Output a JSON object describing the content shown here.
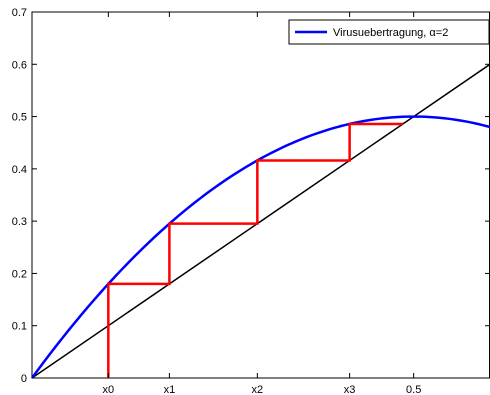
{
  "chart_data": {
    "type": "line",
    "title": "",
    "xlabel": "",
    "ylabel": "",
    "xlim": [
      0,
      0.6
    ],
    "ylim": [
      0,
      0.7
    ],
    "grid": false,
    "legend_position": "top-right",
    "y_ticks": [
      0,
      0.1,
      0.2,
      0.3,
      0.4,
      0.5,
      0.6,
      0.7
    ],
    "y_tick_labels": [
      "0",
      "0.1",
      "0.2",
      "0.3",
      "0.4",
      "0.5",
      "0.6",
      "0.7"
    ],
    "x_ticks": [
      {
        "value": 0.1,
        "label": "x0"
      },
      {
        "value": 0.18,
        "label": "x1"
      },
      {
        "value": 0.2952,
        "label": "x2"
      },
      {
        "value": 0.4161,
        "label": "x3"
      },
      {
        "value": 0.5,
        "label": "0.5"
      }
    ],
    "series": [
      {
        "name": "Virusuebertragung, α=2",
        "function": "2x(1-x)",
        "x": [
          0,
          0.05,
          0.1,
          0.15,
          0.2,
          0.25,
          0.3,
          0.35,
          0.4,
          0.45,
          0.5,
          0.55,
          0.6
        ],
        "y": [
          0,
          0.095,
          0.18,
          0.255,
          0.32,
          0.375,
          0.42,
          0.455,
          0.48,
          0.495,
          0.5,
          0.495,
          0.48
        ],
        "color": "#0000ff"
      },
      {
        "function": "y=x",
        "x": [
          0,
          0.6
        ],
        "y": [
          0,
          0.6
        ],
        "color": "#000000"
      },
      {
        "function": "cobweb iteration",
        "x": [
          0.1,
          0.1,
          0.18,
          0.18,
          0.2952,
          0.2952,
          0.4161,
          0.4161,
          0.4859
        ],
        "y": [
          0,
          0.18,
          0.18,
          0.2952,
          0.2952,
          0.4161,
          0.4161,
          0.4859,
          0.4859
        ],
        "color": "#ff0000"
      }
    ]
  }
}
